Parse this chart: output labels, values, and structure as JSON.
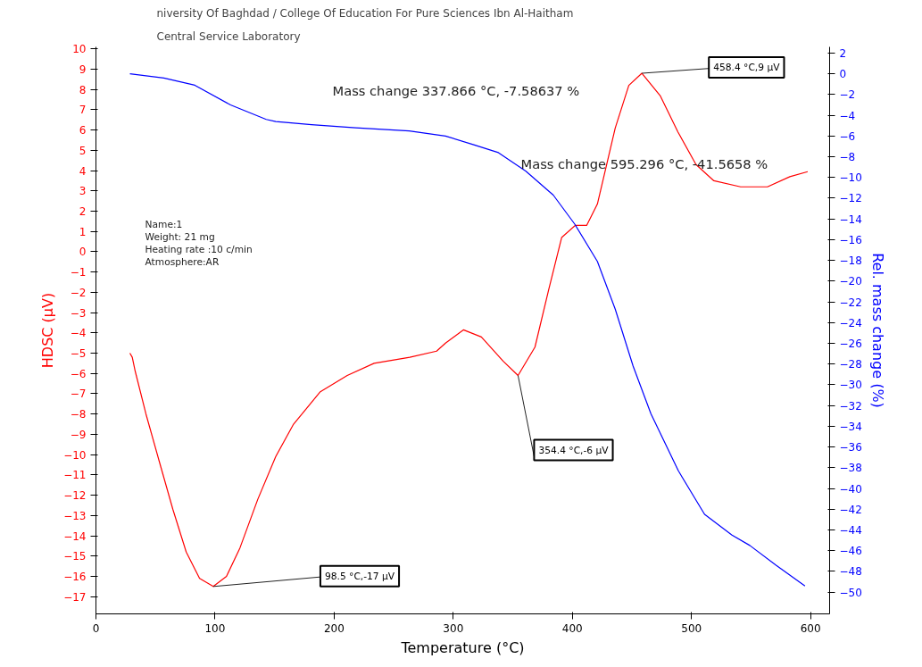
{
  "chart_data": {
    "type": "line",
    "title": "niversity Of Baghdad / College Of Education For Pure Sciences Ibn Al-Haitham",
    "subtitle": "Central Service Laboratory",
    "xlabel": "Temperature (°C)",
    "ylabel": "HDSC (µV)",
    "y2label": "Rel. mass change (%)",
    "xlim": [
      0,
      616
    ],
    "xticks": [
      0,
      100,
      200,
      300,
      400,
      500,
      600
    ],
    "ylim": [
      -17.85,
      10.1
    ],
    "yticks": [
      -17,
      -16,
      -15,
      -14,
      -13,
      -12,
      -11,
      -10,
      -9,
      -8,
      -7,
      -6,
      -5,
      -4,
      -3,
      -2,
      -1,
      0,
      1,
      2,
      3,
      4,
      5,
      6,
      7,
      8,
      9,
      10
    ],
    "y2lim": [
      -52.1,
      2.6
    ],
    "y2ticks": [
      -50,
      -48,
      -46,
      -44,
      -42,
      -40,
      -38,
      -36,
      -34,
      -32,
      -30,
      -28,
      -26,
      -24,
      -22,
      -20,
      -18,
      -16,
      -14,
      -12,
      -10,
      -8,
      -6,
      -4,
      -2,
      0,
      2
    ],
    "grid": false,
    "marker": "none",
    "line_style": "solid",
    "series": [
      {
        "color": "#ff0000",
        "x": [
          28.5,
          30.5,
          33,
          42,
          53,
          64.6,
          75.8,
          87,
          98.5,
          109.6,
          120.9,
          135.9,
          150.9,
          165.9,
          188.4,
          211,
          233.5,
          263.5,
          286,
          293.5,
          308.5,
          323.6,
          342,
          354.4,
          368.6,
          380,
          391,
          402.4,
          412,
          421,
          436,
          447.4,
          458.4,
          473.7,
          488.7,
          503.8,
          518.8,
          541.3,
          563.8,
          582.6,
          597.6
        ],
        "values": [
          -5.0,
          -5.2,
          -5.9,
          -8.0,
          -10.3,
          -12.7,
          -14.8,
          -16.1,
          -16.5,
          -16.0,
          -14.6,
          -12.2,
          -10.1,
          -8.5,
          -6.9,
          -6.1,
          -5.5,
          -5.2,
          -4.9,
          -4.5,
          -3.85,
          -4.2,
          -5.4,
          -6.1,
          -4.7,
          -1.9,
          0.7,
          1.3,
          1.3,
          2.35,
          6.1,
          8.2,
          8.8,
          7.7,
          5.9,
          4.3,
          3.5,
          3.2,
          3.2,
          3.7,
          3.95
        ]
      },
      {
        "color": "#0000ff",
        "axis": "y2",
        "x": [
          28.5,
          57,
          83,
          113,
          143,
          151,
          181,
          218,
          263,
          293.5,
          316,
          337.9,
          361,
          384,
          402,
          421,
          436,
          451,
          466,
          489,
          511,
          534,
          549,
          571,
          595.3
        ],
        "values": [
          0,
          -0.4,
          -1.1,
          -3.0,
          -4.4,
          -4.6,
          -4.9,
          -5.2,
          -5.5,
          -6.0,
          -6.8,
          -7.6,
          -9.4,
          -11.7,
          -14.5,
          -18.1,
          -22.7,
          -28.2,
          -32.8,
          -38.3,
          -42.5,
          -44.5,
          -45.5,
          -47.4,
          -49.4
        ]
      }
    ],
    "annotations": [
      "Name:1",
      "Weight: 21 mg",
      "Heating rate :10 c/min",
      "Atmosphere:AR",
      "Mass change 337.866 °C,  -7.58637 %",
      "Mass change 595.296 °C,  -41.5658 %",
      {
        "text": "98.5 °C,-17 µV",
        "x": 98.5,
        "y": -16.5
      },
      {
        "text": "354.4 °C,-6 µV",
        "x": 354.4,
        "y": -6.1
      },
      {
        "text": "458.4 °C,9 µV",
        "x": 458.4,
        "y": 8.8
      }
    ]
  }
}
